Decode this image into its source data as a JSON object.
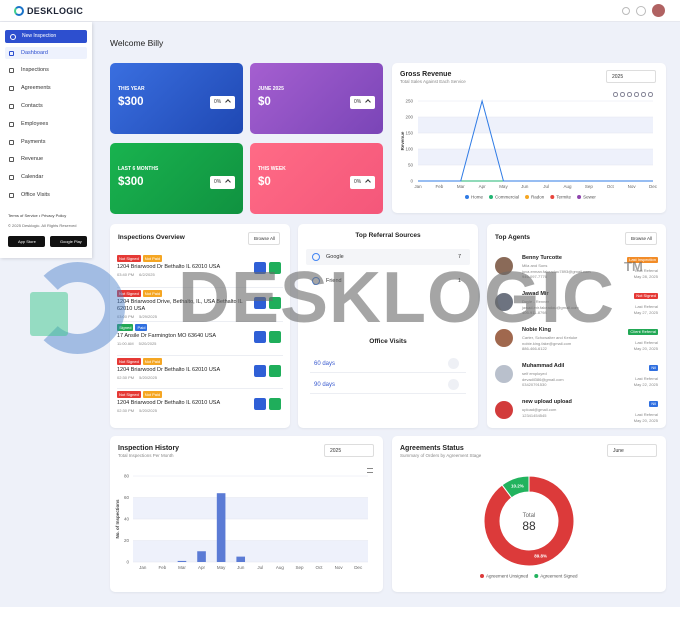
{
  "header": {
    "logo": "DESKLOGIC"
  },
  "sidebar": {
    "button": "New Inspection",
    "items": [
      "Dashboard",
      "Inspections",
      "Agreements",
      "Contacts",
      "Employees",
      "Payments",
      "Revenue",
      "Calendar",
      "Office Visits"
    ],
    "terms": "Terms of Service • Privacy Policy",
    "copyright": "© 2025 Desklogic. All Rights Reserved",
    "stores": [
      "App Store",
      "Google Play"
    ]
  },
  "welcome": "Welcome Billy",
  "stats": [
    {
      "label": "THIS YEAR",
      "value": "$300",
      "change": "0%"
    },
    {
      "label": "JUNE 2025",
      "value": "$0",
      "change": "0%"
    },
    {
      "label": "LAST 6 MONTHS",
      "value": "$300",
      "change": "0%"
    },
    {
      "label": "THIS WEEK",
      "value": "$0",
      "change": "0%"
    }
  ],
  "inspections": {
    "title": "Inspections Overview",
    "browse": "Browse All",
    "items": [
      {
        "badges": [
          {
            "text": "Not Signed",
            "color": "#e53935"
          },
          {
            "text": "Not Paid",
            "color": "#f5a623"
          }
        ],
        "address": "1204 Briarwood Dr Bethalto IL 62010 USA",
        "time": "03:40 PM",
        "date": "6/2/2025"
      },
      {
        "badges": [
          {
            "text": "Not Signed",
            "color": "#e53935"
          },
          {
            "text": "Not Paid",
            "color": "#f5a623"
          }
        ],
        "address": "1204 Briarwood Drive, Bethalto, IL, USA Bethalto IL 62010 USA",
        "time": "03:00 PM",
        "date": "5/29/2025"
      },
      {
        "badges": [
          {
            "text": "Signed",
            "color": "#22a855"
          },
          {
            "text": "Paid",
            "color": "#2f6fe0"
          }
        ],
        "address": "17 Ansile Dr Farmington MO 63640 USA",
        "time": "11:00 AM",
        "date": "5/20/2025"
      },
      {
        "badges": [
          {
            "text": "Not Signed",
            "color": "#e53935"
          },
          {
            "text": "Not Paid",
            "color": "#f5a623"
          }
        ],
        "address": "1204 Briarwood Dr Bethalto IL 62010 USA",
        "time": "02:30 PM",
        "date": "5/20/2025"
      },
      {
        "badges": [
          {
            "text": "Not Signed",
            "color": "#e53935"
          },
          {
            "text": "Not Paid",
            "color": "#f5a623"
          }
        ],
        "address": "1204 Briarwood Dr Bethalto IL 62010 USA",
        "time": "02:30 PM",
        "date": "5/20/2025"
      }
    ]
  },
  "referrals": {
    "title": "Top Referral Sources",
    "sources": [
      {
        "name": "Google",
        "count": 7
      },
      {
        "name": "Friend",
        "count": 1
      }
    ],
    "visits_title": "Office Visits",
    "visits": [
      "60 days",
      "90 days"
    ]
  },
  "agents": {
    "title": "Top Agents",
    "browse": "Browse All",
    "items": [
      {
        "name": "Benny Turcotte",
        "lines": [
          "Mila and Sons",
          "juva.erman.fakeadou7893@gmail.com",
          "946-097-7776"
        ],
        "badge": "Last Inspection",
        "badge_color": "#f28c28",
        "date_label": "Last Referral",
        "date": "May 28, 2025"
      },
      {
        "name": "Jawad Mir",
        "lines": [
          "Doyle - Renner",
          "jawad.mir.fakeadou@gmail.com",
          "405-911-8798"
        ],
        "badge": "Not Signed",
        "badge_color": "#e53935",
        "date_label": "Last Referral",
        "date": "May 27, 2025"
      },
      {
        "name": "Nobie King",
        "lines": [
          "Carter, Schowalter and Kerluke",
          "nobie.king.fake@gmail.com",
          "886-466-6122"
        ],
        "badge": "Client Referral",
        "badge_color": "#22a855",
        "date_label": "Last Referral",
        "date": "May 20, 2025"
      },
      {
        "name": "Muhammad Adil",
        "lines": [
          "self employed",
          "devadil386@gmail.com",
          "03420791530"
        ],
        "badge": "Nil",
        "badge_color": "#2f6fe0",
        "date_label": "Last Referral",
        "date": "May 22, 2025"
      },
      {
        "name": "new upload upload",
        "lines": [
          "upload@gmail.com",
          "12341454545"
        ],
        "badge": "Nil",
        "badge_color": "#2f6fe0",
        "date_label": "Last Referral",
        "date": "May 20, 2025"
      }
    ]
  },
  "chart_data": [
    {
      "type": "line",
      "title": "Gross Revenue",
      "subtitle": "Total Sales Against Each Service",
      "selector": "2025",
      "y_label": "Revenue",
      "categories": [
        "Jan",
        "Feb",
        "Mar",
        "Apr",
        "May",
        "Jun",
        "Jul",
        "Aug",
        "Sep",
        "Oct",
        "Nov",
        "Dec"
      ],
      "series": [
        {
          "name": "Home",
          "color": "#2f7be5",
          "values": [
            0,
            0,
            0,
            250,
            0,
            0,
            0,
            0,
            0,
            0,
            0,
            0
          ]
        },
        {
          "name": "Commercial",
          "color": "#22b573",
          "values": [
            0,
            0,
            0,
            0,
            0,
            0,
            0,
            0,
            0,
            0,
            0,
            0
          ]
        },
        {
          "name": "Radon",
          "color": "#f5a623",
          "values": [
            0,
            0,
            0,
            0,
            0,
            0,
            0,
            0,
            0,
            0,
            0,
            0
          ]
        },
        {
          "name": "Termite",
          "color": "#e8453c",
          "values": [
            0,
            0,
            0,
            0,
            0,
            0,
            0,
            0,
            0,
            0,
            0,
            0
          ]
        },
        {
          "name": "Sewer",
          "color": "#8e44ad",
          "values": [
            0,
            0,
            0,
            0,
            0,
            0,
            0,
            0,
            0,
            0,
            0,
            0
          ]
        }
      ],
      "ylim": [
        0,
        250
      ],
      "yticks": [
        0,
        50,
        100,
        150,
        200,
        250
      ],
      "grid": true
    },
    {
      "type": "bar",
      "title": "Inspection History",
      "subtitle": "Total Inspections Per Month",
      "selector": "2025",
      "y_label": "No. of Inspections",
      "categories": [
        "Jan",
        "Feb",
        "Mar",
        "Apr",
        "May",
        "Jun",
        "Jul",
        "Aug",
        "Sep",
        "Oct",
        "Nov",
        "Dec"
      ],
      "values": [
        0,
        0,
        1,
        10,
        64,
        5,
        0,
        0,
        0,
        0,
        0,
        0
      ],
      "color": "#5b7bd5",
      "ylim": [
        0,
        80
      ],
      "yticks": [
        0,
        20,
        40,
        60,
        80
      ],
      "grid": true
    },
    {
      "type": "donut",
      "title": "Agreements Status",
      "subtitle": "Summary of Orders by Agreement Stage",
      "selector": "June",
      "center_label": "Total",
      "total": 88,
      "categories": [
        "Agreement Unsigned",
        "Agreement Signed"
      ],
      "values": [
        89.8,
        10.2
      ],
      "value_labels": [
        "89.8%",
        "10.2%"
      ],
      "colors": [
        "#dc3a3a",
        "#22b35e"
      ]
    }
  ],
  "watermark": {
    "text": "DESKLOGIC",
    "tm": "TM"
  }
}
